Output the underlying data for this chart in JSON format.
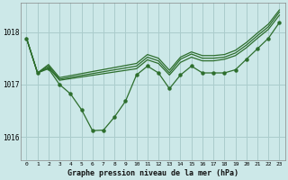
{
  "background_color": "#cce8e8",
  "grid_color": "#aacccc",
  "line_color": "#2d6e2d",
  "title": "Graphe pression niveau de la mer (hPa)",
  "xlim": [
    -0.5,
    23.5
  ],
  "ylim": [
    1015.55,
    1018.55
  ],
  "yticks": [
    1016,
    1017,
    1018
  ],
  "xticks": [
    0,
    1,
    2,
    3,
    4,
    5,
    6,
    7,
    8,
    9,
    10,
    11,
    12,
    13,
    14,
    15,
    16,
    17,
    18,
    19,
    20,
    21,
    22,
    23
  ],
  "main_x": [
    0,
    1,
    2,
    3,
    4,
    5,
    6,
    7,
    8,
    9,
    10,
    11,
    12,
    13,
    14,
    15,
    16,
    17,
    18,
    19,
    20,
    21,
    22,
    23
  ],
  "main_y": [
    1017.88,
    1017.22,
    1017.3,
    1017.0,
    1016.82,
    1016.52,
    1016.12,
    1016.13,
    1016.38,
    1016.68,
    1017.18,
    1017.35,
    1017.22,
    1016.92,
    1017.18,
    1017.35,
    1017.22,
    1017.22,
    1017.22,
    1017.28,
    1017.48,
    1017.68,
    1017.88,
    1018.18
  ],
  "env1_x": [
    0,
    1,
    2,
    3,
    10,
    11,
    12,
    13,
    14,
    15,
    16,
    17,
    18,
    19,
    20,
    21,
    22,
    23
  ],
  "env1_y": [
    1017.88,
    1017.22,
    1017.32,
    1017.08,
    1017.3,
    1017.47,
    1017.4,
    1017.18,
    1017.42,
    1017.52,
    1017.45,
    1017.45,
    1017.48,
    1017.55,
    1017.7,
    1017.88,
    1018.05,
    1018.32
  ],
  "env2_x": [
    0,
    1,
    2,
    3,
    10,
    11,
    12,
    13,
    14,
    15,
    16,
    17,
    18,
    19,
    20,
    21,
    22,
    23
  ],
  "env2_y": [
    1017.88,
    1017.22,
    1017.35,
    1017.1,
    1017.35,
    1017.52,
    1017.45,
    1017.22,
    1017.48,
    1017.58,
    1017.5,
    1017.5,
    1017.52,
    1017.6,
    1017.75,
    1017.93,
    1018.1,
    1018.38
  ],
  "env3_x": [
    0,
    1,
    2,
    3,
    10,
    11,
    12,
    13,
    14,
    15,
    16,
    17,
    18,
    19,
    20,
    21,
    22,
    23
  ],
  "env3_y": [
    1017.88,
    1017.22,
    1017.38,
    1017.13,
    1017.4,
    1017.57,
    1017.5,
    1017.27,
    1017.52,
    1017.62,
    1017.55,
    1017.55,
    1017.57,
    1017.65,
    1017.8,
    1017.98,
    1018.15,
    1018.42
  ]
}
